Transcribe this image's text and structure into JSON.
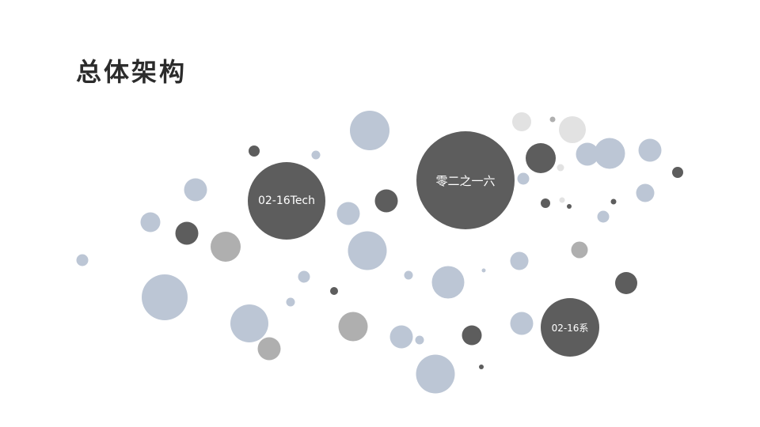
{
  "page": {
    "title": "总体架构"
  },
  "bubbles": {
    "left": "02-16Tech",
    "center": "零二之一六",
    "bottom_right": "02-16系"
  },
  "colors": {
    "blue": "#bcc6d5",
    "dark": "#5d5d5d",
    "gray": "#afafaf",
    "light": "#e2e2e2"
  }
}
